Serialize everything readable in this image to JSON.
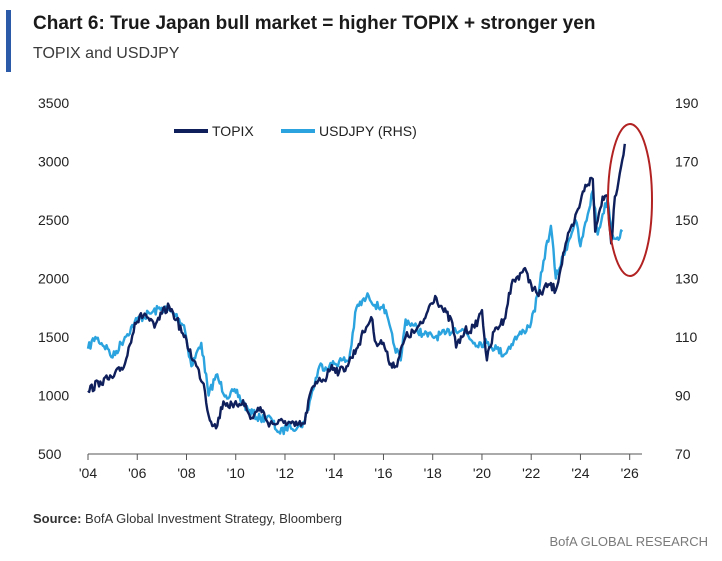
{
  "header": {
    "title": "Chart 6: True Japan bull market = higher TOPIX + stronger yen",
    "subtitle": "TOPIX and USDJPY"
  },
  "footer": {
    "source_label": "Source:",
    "source_text": " BofA Global Investment Strategy, Bloomberg",
    "brand": "BofA GLOBAL RESEARCH"
  },
  "colors": {
    "accent": "#2B5BA8",
    "topix": "#0F1F5C",
    "usdjpy": "#2AA3DE",
    "highlight_ellipse": "#B22222"
  },
  "chart_data": {
    "type": "line",
    "title": "Chart 6: True Japan bull market = higher TOPIX + stronger yen",
    "subtitle": "TOPIX and USDJPY",
    "xlim": [
      2004,
      2026.5
    ],
    "x_ticks": [
      2004,
      2006,
      2008,
      2010,
      2012,
      2014,
      2016,
      2018,
      2020,
      2022,
      2024,
      2026
    ],
    "x_tick_labels": [
      "'04",
      "'06",
      "'08",
      "'10",
      "'12",
      "'14",
      "'16",
      "'18",
      "'20",
      "'22",
      "'24",
      "'26"
    ],
    "ylim_left": [
      500,
      3500
    ],
    "y_ticks_left": [
      500,
      1000,
      1500,
      2000,
      2500,
      3000,
      3500
    ],
    "ylim_right": [
      70,
      190
    ],
    "y_ticks_right": [
      70,
      90,
      110,
      130,
      150,
      170,
      190
    ],
    "grid": false,
    "legend_position": "top-center",
    "annotation": "red ellipse highlighting 2024-2025",
    "series": [
      {
        "name": "TOPIX",
        "axis": "left",
        "x": [
          2004.0,
          2004.5,
          2005.0,
          2005.5,
          2005.9,
          2006.3,
          2006.7,
          2007.0,
          2007.3,
          2007.6,
          2007.9,
          2008.3,
          2008.7,
          2008.9,
          2009.2,
          2009.5,
          2009.9,
          2010.3,
          2010.6,
          2011.0,
          2011.3,
          2011.7,
          2012.0,
          2012.4,
          2012.8,
          2013.0,
          2013.4,
          2013.6,
          2013.9,
          2014.2,
          2014.5,
          2014.9,
          2015.2,
          2015.5,
          2015.7,
          2016.0,
          2016.2,
          2016.5,
          2016.9,
          2017.3,
          2017.6,
          2017.9,
          2018.1,
          2018.4,
          2018.8,
          2018.95,
          2019.3,
          2019.7,
          2020.0,
          2020.2,
          2020.5,
          2020.9,
          2021.2,
          2021.7,
          2022.0,
          2022.3,
          2022.7,
          2023.0,
          2023.4,
          2023.7,
          2024.0,
          2024.2,
          2024.5,
          2024.6,
          2024.9,
          2025.1,
          2025.25,
          2025.4,
          2025.6,
          2025.8
        ],
        "values": [
          1040,
          1120,
          1150,
          1270,
          1620,
          1700,
          1580,
          1700,
          1760,
          1650,
          1500,
          1300,
          1100,
          830,
          720,
          950,
          900,
          960,
          800,
          900,
          770,
          760,
          780,
          740,
          760,
          1000,
          1150,
          1130,
          1260,
          1200,
          1250,
          1400,
          1540,
          1670,
          1450,
          1450,
          1300,
          1250,
          1500,
          1550,
          1620,
          1780,
          1850,
          1740,
          1620,
          1410,
          1550,
          1580,
          1730,
          1300,
          1550,
          1650,
          1950,
          2080,
          1950,
          1850,
          1950,
          1900,
          2300,
          2450,
          2650,
          2800,
          2850,
          2400,
          2700,
          2700,
          2300,
          2700,
          2900,
          3150
        ]
      },
      {
        "name": "USDJPY (RHS)",
        "axis": "right",
        "x": [
          2004.0,
          2004.3,
          2004.8,
          2005.0,
          2005.5,
          2006.0,
          2006.5,
          2007.0,
          2007.5,
          2007.9,
          2008.2,
          2008.6,
          2008.9,
          2009.2,
          2009.6,
          2010.0,
          2010.5,
          2011.0,
          2011.3,
          2011.8,
          2012.2,
          2012.5,
          2012.8,
          2013.0,
          2013.4,
          2013.8,
          2014.3,
          2014.6,
          2014.9,
          2015.4,
          2015.8,
          2016.0,
          2016.4,
          2016.7,
          2016.9,
          2017.2,
          2017.6,
          2018.0,
          2018.5,
          2018.9,
          2019.3,
          2019.7,
          2020.2,
          2020.6,
          2020.9,
          2021.3,
          2021.7,
          2022.0,
          2022.3,
          2022.5,
          2022.8,
          2023.0,
          2023.4,
          2023.8,
          2024.0,
          2024.3,
          2024.5,
          2024.7,
          2024.9,
          2025.1,
          2025.3,
          2025.5,
          2025.7
        ],
        "values": [
          106,
          110,
          106,
          103,
          110,
          116,
          118,
          120,
          118,
          114,
          100,
          108,
          90,
          97,
          90,
          91,
          85,
          82,
          83,
          77,
          80,
          79,
          81,
          88,
          100,
          100,
          102,
          102,
          120,
          124,
          120,
          121,
          108,
          102,
          116,
          114,
          111,
          110,
          111,
          113,
          112,
          108,
          108,
          106,
          104,
          109,
          112,
          115,
          125,
          136,
          148,
          130,
          140,
          150,
          141,
          152,
          160,
          145,
          152,
          157,
          145,
          144,
          146
        ]
      }
    ]
  }
}
